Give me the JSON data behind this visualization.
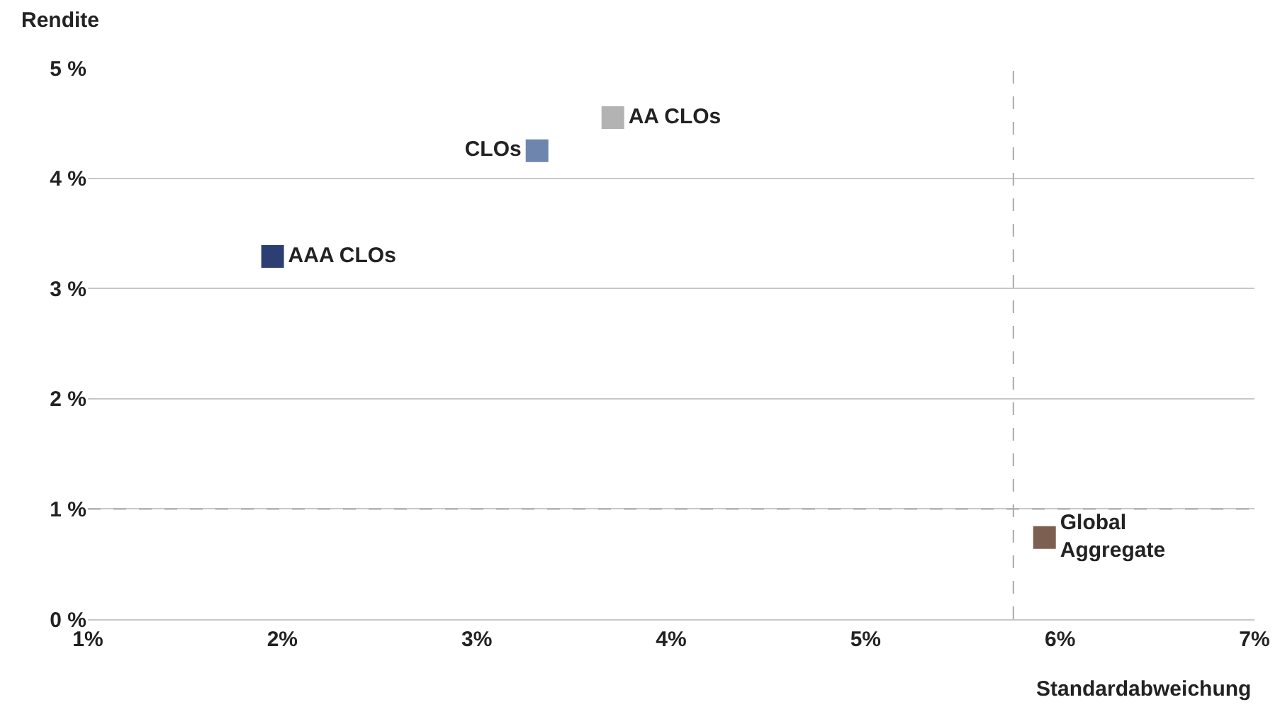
{
  "chart_data": {
    "type": "scatter",
    "xlabel": "Standardabweichung",
    "ylabel": "Rendite",
    "series": [
      {
        "name": "AAA CLOs",
        "color": "#2d3f72",
        "x": [
          1.95
        ],
        "values": [
          3.29
        ]
      },
      {
        "name": "CLOs",
        "color": "#6e86ad",
        "x": [
          3.31
        ],
        "values": [
          4.25
        ]
      },
      {
        "name": "AA CLOs",
        "color": "#b3b3b3",
        "x": [
          3.7
        ],
        "values": [
          4.55
        ]
      },
      {
        "name": "Global Aggregate",
        "color": "#7d5f52",
        "x": [
          5.92
        ],
        "values": [
          0.74
        ]
      }
    ],
    "xlim": [
      1,
      7
    ],
    "ylim": [
      0,
      5
    ],
    "xticks": [
      {
        "value": 1,
        "label": "1%"
      },
      {
        "value": 2,
        "label": "2%"
      },
      {
        "value": 3,
        "label": "3%"
      },
      {
        "value": 4,
        "label": "4%"
      },
      {
        "value": 5,
        "label": "5%"
      },
      {
        "value": 6,
        "label": "6%"
      },
      {
        "value": 7,
        "label": "7%"
      }
    ],
    "yticks": [
      {
        "value": 0,
        "label": "0 %"
      },
      {
        "value": 1,
        "label": "1 %"
      },
      {
        "value": 2,
        "label": "2 %"
      },
      {
        "value": 3,
        "label": "3 %"
      },
      {
        "value": 4,
        "label": "4 %"
      },
      {
        "value": 5,
        "label": "5 %"
      }
    ],
    "ref_lines": [
      {
        "axis": "x",
        "value": 5.76,
        "color": "#aaaaaa",
        "line_style": "dashed"
      },
      {
        "axis": "y",
        "value": 1,
        "color": "#aaaaaa",
        "line_style": "dashed"
      }
    ],
    "grid": "y",
    "legend": false,
    "marker": "square"
  }
}
